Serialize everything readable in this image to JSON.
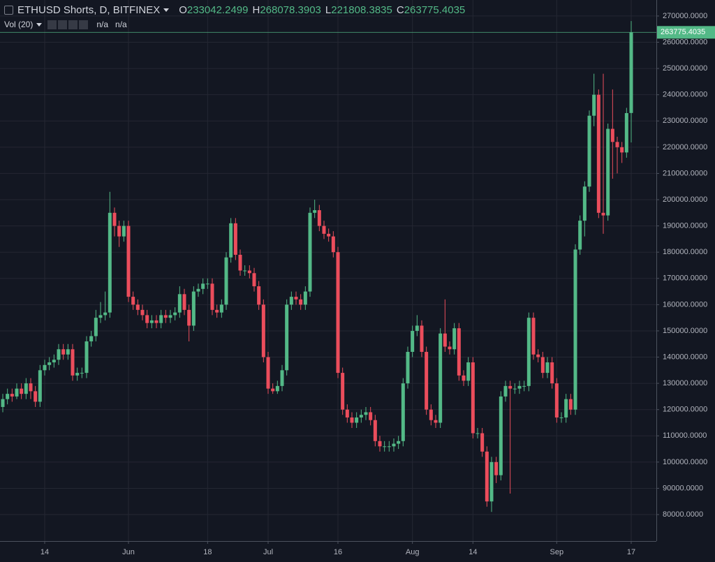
{
  "chart_data": {
    "type": "candlestick",
    "title": "ETHUSD Shorts, D, BITFINEX",
    "ohlc_labels": [
      "O",
      "H",
      "L",
      "C"
    ],
    "indicator": "Vol (20)",
    "indicator_values": [
      "n/a",
      "n/a"
    ],
    "up_color": "#53b987",
    "down_color": "#eb4d5c",
    "grid": true,
    "categories": [
      null,
      null,
      null,
      null,
      null,
      null,
      null,
      null,
      null,
      "14",
      null,
      null,
      null,
      null,
      null,
      null,
      null,
      null,
      null,
      null,
      null,
      null,
      null,
      null,
      null,
      null,
      null,
      "Jun",
      null,
      null,
      null,
      null,
      null,
      null,
      null,
      null,
      null,
      null,
      null,
      null,
      null,
      null,
      null,
      null,
      "18",
      null,
      null,
      null,
      null,
      null,
      null,
      null,
      null,
      null,
      null,
      null,
      null,
      "Jul",
      null,
      null,
      null,
      null,
      null,
      null,
      null,
      null,
      null,
      null,
      null,
      null,
      null,
      null,
      "16",
      null,
      null,
      null,
      null,
      null,
      null,
      null,
      null,
      null,
      null,
      null,
      null,
      null,
      null,
      null,
      "Aug",
      null,
      null,
      null,
      null,
      null,
      null,
      null,
      null,
      null,
      null,
      null,
      null,
      "14",
      null,
      null,
      null,
      null,
      null,
      null,
      null,
      null,
      null,
      null,
      null,
      null,
      null,
      null,
      null,
      null,
      null,
      "Sep",
      null,
      null,
      null,
      null,
      null,
      null,
      null,
      null,
      null,
      null,
      null,
      null,
      null,
      null,
      null,
      "17"
    ],
    "open": [
      121000,
      124000,
      126000,
      125000,
      128000,
      126000,
      130000,
      127000,
      123000,
      135000,
      137000,
      138000,
      139000,
      143000,
      141000,
      143000,
      133000,
      134000,
      134000,
      146000,
      148000,
      155000,
      156000,
      157000,
      195000,
      190000,
      186000,
      190000,
      163000,
      160000,
      158000,
      156000,
      153000,
      154000,
      153000,
      156000,
      155000,
      156000,
      157000,
      164000,
      158000,
      152000,
      165000,
      166000,
      168000,
      168000,
      158000,
      157000,
      160000,
      178000,
      191000,
      179000,
      173000,
      173000,
      172000,
      167000,
      160000,
      140000,
      128000,
      127000,
      129000,
      135000,
      160000,
      163000,
      162000,
      160000,
      165000,
      195000,
      196000,
      190000,
      187000,
      186000,
      180000,
      134000,
      120000,
      117000,
      115000,
      117000,
      118000,
      119000,
      116000,
      108000,
      106000,
      106000,
      106000,
      107000,
      108000,
      130000,
      142000,
      150000,
      152000,
      142000,
      120000,
      116000,
      115000,
      149000,
      144000,
      143000,
      151000,
      133000,
      131000,
      138000,
      111000,
      111000,
      104000,
      85000,
      100000,
      95000,
      125000,
      129000,
      128000,
      128000,
      129000,
      129000,
      155000,
      141000,
      140000,
      134000,
      138000,
      130000,
      117000,
      117000,
      124000,
      120000,
      181000,
      192000,
      205000,
      232000,
      240000,
      195000,
      194000,
      227000,
      222000,
      220000,
      218000,
      233042.2499
    ],
    "high": [
      126000,
      128000,
      128000,
      130000,
      130000,
      132000,
      132000,
      129000,
      137000,
      139000,
      140000,
      141000,
      145000,
      145000,
      145000,
      145000,
      136000,
      136000,
      148000,
      150000,
      158000,
      161000,
      165000,
      203000,
      197000,
      192000,
      192000,
      192000,
      165000,
      162000,
      160000,
      158000,
      156000,
      156000,
      158000,
      158000,
      158000,
      159000,
      167000,
      166000,
      160000,
      167000,
      168000,
      170000,
      170000,
      170000,
      160000,
      162000,
      180000,
      193000,
      193000,
      181000,
      175000,
      175000,
      174000,
      169000,
      162000,
      142000,
      130000,
      131000,
      137000,
      162000,
      165000,
      165000,
      164000,
      167000,
      197000,
      200000,
      198000,
      192000,
      189000,
      188000,
      182000,
      136000,
      122000,
      119000,
      119000,
      120000,
      121000,
      121000,
      118000,
      110000,
      108000,
      108000,
      109000,
      110000,
      132000,
      144000,
      152000,
      156000,
      154000,
      144000,
      122000,
      118000,
      151000,
      162000,
      146000,
      153000,
      153000,
      135000,
      140000,
      140000,
      113000,
      113000,
      106000,
      102000,
      102000,
      127000,
      131000,
      131000,
      130000,
      131000,
      131000,
      157000,
      157000,
      143000,
      142000,
      140000,
      140000,
      132000,
      119000,
      126000,
      126000,
      183000,
      194000,
      207000,
      234000,
      248000,
      242000,
      248000,
      229000,
      242000,
      224000,
      222000,
      235000,
      268078.3903
    ],
    "low": [
      119000,
      122000,
      123000,
      124000,
      124000,
      124000,
      124000,
      121000,
      121000,
      133000,
      135000,
      136000,
      137000,
      139000,
      139000,
      131000,
      131000,
      132000,
      132000,
      144000,
      146000,
      153000,
      154000,
      155000,
      186000,
      182000,
      184000,
      161000,
      158000,
      156000,
      154000,
      151000,
      151000,
      151000,
      151000,
      153000,
      153000,
      154000,
      155000,
      156000,
      146000,
      150000,
      163000,
      164000,
      166000,
      156000,
      155000,
      155000,
      158000,
      176000,
      177000,
      171000,
      171000,
      170000,
      165000,
      158000,
      138000,
      126000,
      126000,
      126000,
      127000,
      133000,
      158000,
      160000,
      158000,
      158000,
      163000,
      193000,
      188000,
      185000,
      184000,
      178000,
      132000,
      118000,
      115000,
      113000,
      113000,
      115000,
      116000,
      114000,
      106000,
      104000,
      104000,
      104000,
      104000,
      105000,
      106000,
      128000,
      140000,
      148000,
      140000,
      118000,
      114000,
      113000,
      113000,
      142000,
      141000,
      141000,
      131000,
      129000,
      129000,
      109000,
      109000,
      102000,
      83000,
      81000,
      92000,
      93000,
      123000,
      88000,
      126000,
      126000,
      127000,
      127000,
      139000,
      138000,
      132000,
      132000,
      128000,
      115000,
      115000,
      115000,
      118000,
      118000,
      179000,
      186000,
      203000,
      228000,
      193000,
      187000,
      192000,
      208000,
      210000,
      214000,
      216000,
      221808.3835
    ],
    "close": [
      124000,
      126000,
      125000,
      128000,
      126000,
      130000,
      127000,
      123000,
      135000,
      137000,
      138000,
      139000,
      143000,
      141000,
      143000,
      133000,
      134000,
      134000,
      146000,
      148000,
      155000,
      156000,
      157000,
      195000,
      190000,
      186000,
      190000,
      163000,
      160000,
      158000,
      156000,
      153000,
      154000,
      153000,
      156000,
      155000,
      156000,
      157000,
      164000,
      158000,
      152000,
      165000,
      166000,
      168000,
      168000,
      158000,
      157000,
      160000,
      178000,
      191000,
      179000,
      173000,
      173000,
      172000,
      167000,
      160000,
      140000,
      128000,
      127000,
      129000,
      135000,
      160000,
      163000,
      162000,
      160000,
      165000,
      195000,
      196000,
      190000,
      187000,
      186000,
      180000,
      134000,
      120000,
      117000,
      115000,
      117000,
      118000,
      119000,
      116000,
      108000,
      106000,
      106000,
      106000,
      107000,
      108000,
      130000,
      142000,
      150000,
      152000,
      142000,
      120000,
      116000,
      115000,
      149000,
      144000,
      143000,
      151000,
      133000,
      131000,
      138000,
      111000,
      111000,
      104000,
      85000,
      100000,
      95000,
      125000,
      129000,
      128000,
      128000,
      129000,
      129000,
      155000,
      141000,
      140000,
      134000,
      138000,
      130000,
      117000,
      117000,
      124000,
      120000,
      181000,
      192000,
      205000,
      232000,
      240000,
      195000,
      194000,
      227000,
      222000,
      220000,
      218000,
      233000,
      263775.4035
    ],
    "ylim": [
      69900,
      276100
    ],
    "yticks": [
      {
        "value": 80000,
        "label": "80000.0000"
      },
      {
        "value": 90000,
        "label": "90000.0000"
      },
      {
        "value": 100000,
        "label": "100000.0000"
      },
      {
        "value": 110000,
        "label": "110000.0000"
      },
      {
        "value": 120000,
        "label": "120000.0000"
      },
      {
        "value": 130000,
        "label": "130000.0000"
      },
      {
        "value": 140000,
        "label": "140000.0000"
      },
      {
        "value": 150000,
        "label": "150000.0000"
      },
      {
        "value": 160000,
        "label": "160000.0000"
      },
      {
        "value": 170000,
        "label": "170000.0000"
      },
      {
        "value": 180000,
        "label": "180000.0000"
      },
      {
        "value": 190000,
        "label": "190000.0000"
      },
      {
        "value": 200000,
        "label": "200000.0000"
      },
      {
        "value": 210000,
        "label": "210000.0000"
      },
      {
        "value": 220000,
        "label": "220000.0000"
      },
      {
        "value": 230000,
        "label": "230000.0000"
      },
      {
        "value": 240000,
        "label": "240000.0000"
      },
      {
        "value": 250000,
        "label": "250000.0000"
      },
      {
        "value": 260000,
        "label": "260000.0000"
      },
      {
        "value": 270000,
        "label": "270000.0000"
      }
    ]
  }
}
